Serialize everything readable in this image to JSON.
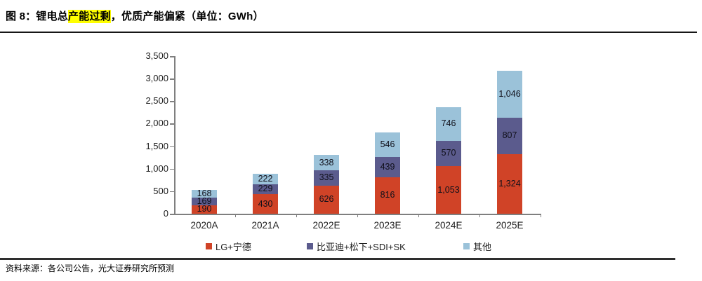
{
  "title": {
    "prefix": "图 8：锂电总",
    "highlight": "产能过剩",
    "suffix": "，优质产能偏紧（单位：GWh）",
    "highlight_color": "#FFFF00"
  },
  "footer": {
    "source": "资料来源：各公司公告，光大证券研究所预测"
  },
  "chart_data": {
    "type": "bar",
    "stacked": true,
    "categories": [
      "2020A",
      "2021A",
      "2022E",
      "2023E",
      "2024E",
      "2025E"
    ],
    "series": [
      {
        "name": "LG+宁德",
        "color": "#D04327",
        "values": [
          190,
          430,
          626,
          816,
          1053,
          1324
        ]
      },
      {
        "name": "比亚迪+松下+SDI+SK",
        "color": "#5B5B8D",
        "values": [
          169,
          229,
          335,
          439,
          570,
          807
        ]
      },
      {
        "name": "其他",
        "color": "#9BC2D9",
        "values": [
          168,
          222,
          338,
          546,
          746,
          1046
        ]
      }
    ],
    "totals": [
      527,
      881,
      1299,
      1801,
      2369,
      3177
    ],
    "ylim": [
      0,
      3500
    ],
    "ytick_step": 500,
    "ytick_labels": [
      "0",
      "500",
      "1,000",
      "1,500",
      "2,000",
      "2,500",
      "3,000",
      "3,500"
    ],
    "grid": false,
    "data_labels": true,
    "legend_position": "bottom",
    "axis_color": "#7f7f7f"
  }
}
